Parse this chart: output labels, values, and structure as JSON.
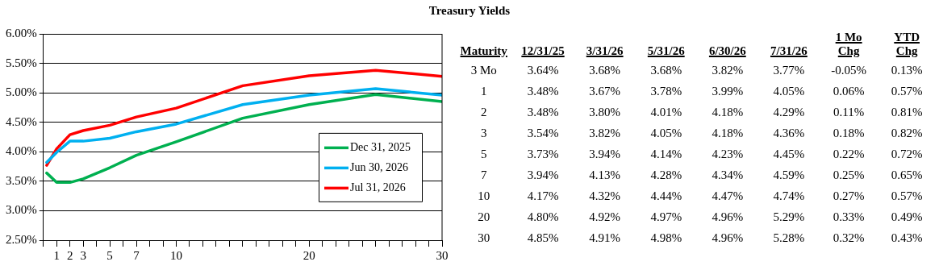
{
  "chart_data": [
    {
      "type": "line",
      "title": "Treasury Yields",
      "x": [
        0.25,
        1,
        2,
        3,
        5,
        7,
        10,
        15,
        20,
        25,
        30
      ],
      "series": [
        {
          "name": "Dec 31, 2025",
          "color": "#00b050",
          "values": [
            3.64,
            3.48,
            3.48,
            3.54,
            3.73,
            3.94,
            4.17,
            4.57,
            4.8,
            4.97,
            4.85
          ]
        },
        {
          "name": "Jun 30, 2026",
          "color": "#00b0f0",
          "values": [
            3.82,
            3.99,
            4.18,
            4.18,
            4.23,
            4.34,
            4.47,
            4.8,
            4.96,
            5.07,
            4.96
          ]
        },
        {
          "name": "Jul 31, 2026",
          "color": "#ff0000",
          "values": [
            3.77,
            4.05,
            4.29,
            4.36,
            4.45,
            4.59,
            4.74,
            5.12,
            5.29,
            5.38,
            5.28
          ]
        }
      ],
      "xlim": [
        0,
        30
      ],
      "xticks": [
        {
          "value": 0,
          "label": null
        },
        1,
        2,
        3,
        {
          "value": 4,
          "label": null
        },
        5,
        {
          "value": 6,
          "label": null
        },
        7,
        {
          "value": 8,
          "label": null
        },
        {
          "value": 9,
          "label": null
        },
        10,
        {
          "value": 11,
          "label": null
        },
        {
          "value": 12,
          "label": null
        },
        {
          "value": 13,
          "label": null
        },
        {
          "value": 14,
          "label": null
        },
        {
          "value": 15,
          "label": null
        },
        {
          "value": 16,
          "label": null
        },
        {
          "value": 17,
          "label": null
        },
        {
          "value": 18,
          "label": null
        },
        {
          "value": 19,
          "label": null
        },
        20,
        {
          "value": 21,
          "label": null
        },
        {
          "value": 22,
          "label": null
        },
        {
          "value": 23,
          "label": null
        },
        {
          "value": 24,
          "label": null
        },
        {
          "value": 25,
          "label": null
        },
        {
          "value": 26,
          "label": null
        },
        {
          "value": 27,
          "label": null
        },
        {
          "value": 28,
          "label": null
        },
        {
          "value": 29,
          "label": null
        },
        30
      ],
      "ylim": [
        2.5,
        6
      ],
      "yticks": [
        {
          "value": 2.5,
          "label": "2.50%"
        },
        {
          "value": 3,
          "label": "3.00%"
        },
        {
          "value": 3.5,
          "label": "3.50%"
        },
        {
          "value": 4,
          "label": "4.00%"
        },
        {
          "value": 4.5,
          "label": "4.50%"
        },
        {
          "value": 5,
          "label": "5.00%"
        },
        {
          "value": 5.5,
          "label": "5.50%"
        },
        {
          "value": 6,
          "label": "6.00%"
        }
      ],
      "grid": "y",
      "legend": "right",
      "marker": "none",
      "line_style": "solid"
    },
    {
      "type": "other",
      "annotations": [
        "Maturity",
        "12/31/25",
        "3/31/26",
        "5/31/26",
        "6/30/26",
        "7/31/26",
        "1 Mo Chg",
        "YTD Chg",
        "3 Mo",
        "3.64%",
        "3.68%",
        "3.68%",
        "3.82%",
        "3.77%",
        "-0.05%",
        "0.13%",
        "1",
        "3.48%",
        "3.67%",
        "3.78%",
        "3.99%",
        "4.05%",
        "0.06%",
        "0.57%",
        "2",
        "3.48%",
        "3.80%",
        "4.01%",
        "4.18%",
        "4.29%",
        "0.11%",
        "0.81%",
        "3",
        "3.54%",
        "3.82%",
        "4.05%",
        "4.18%",
        "4.36%",
        "0.18%",
        "0.82%",
        "5",
        "3.73%",
        "3.94%",
        "4.14%",
        "4.23%",
        "4.45%",
        "0.22%",
        "0.72%",
        "7",
        "3.94%",
        "4.13%",
        "4.28%",
        "4.34%",
        "4.59%",
        "0.25%",
        "0.65%",
        "10",
        "4.17%",
        "4.32%",
        "4.44%",
        "4.47%",
        "4.74%",
        "0.27%",
        "0.57%",
        "20",
        "4.80%",
        "4.92%",
        "4.97%",
        "4.96%",
        "5.29%",
        "0.33%",
        "0.49%",
        "30",
        "4.85%",
        "4.91%",
        "4.98%",
        "4.96%",
        "5.28%",
        "0.32%",
        "0.43%"
      ]
    }
  ]
}
